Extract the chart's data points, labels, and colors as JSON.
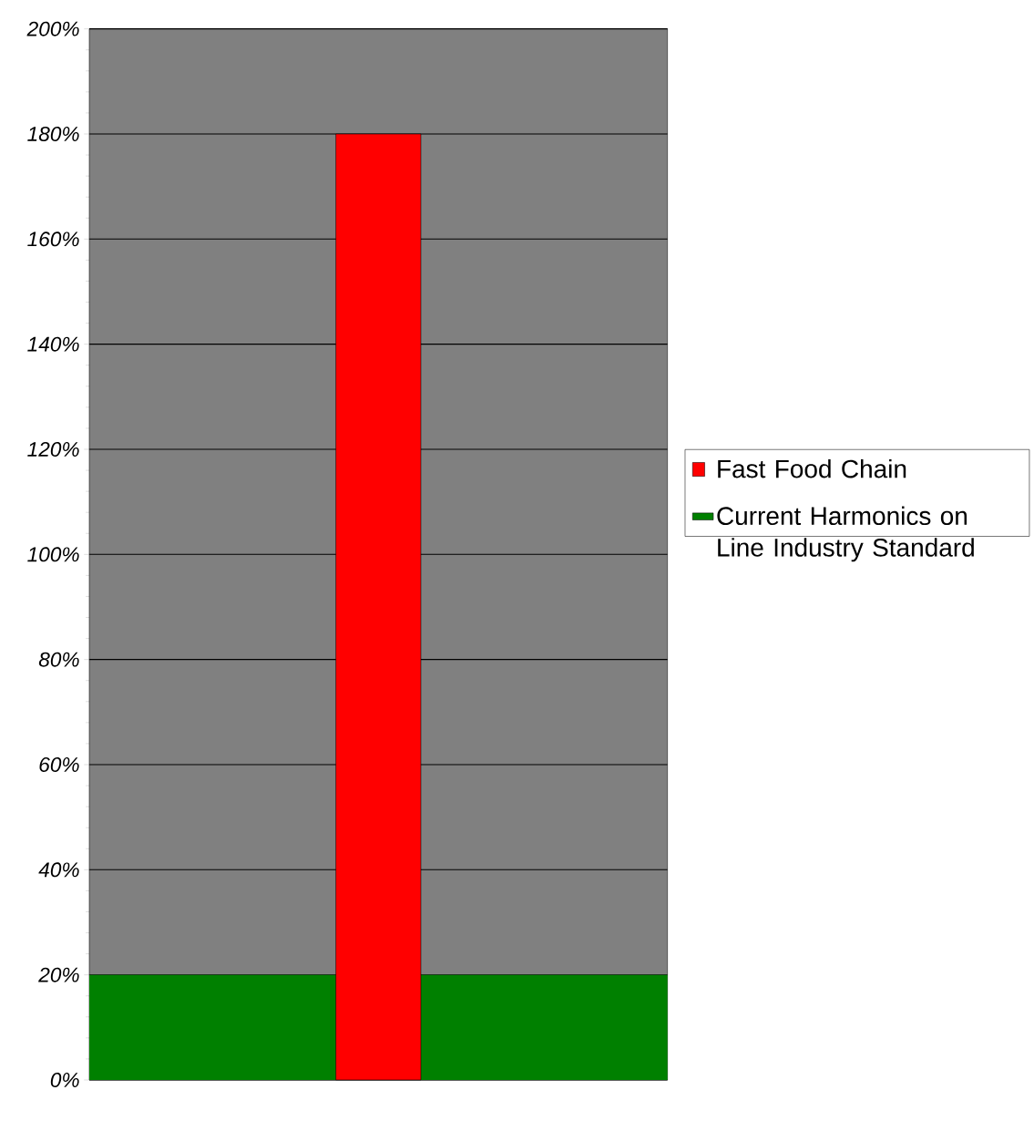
{
  "chart_data": {
    "type": "bar",
    "categories": [
      null
    ],
    "series": [
      {
        "name": "Fast Food Chain",
        "color": "#ff0000",
        "values": [
          180
        ]
      }
    ],
    "bands": [
      {
        "axis": "y",
        "from": 0,
        "to": 20,
        "label": "Current Harmonics on Line Industry Standard",
        "color": "#008000"
      }
    ],
    "ylim": [
      0,
      200
    ],
    "yticks": [
      {
        "value": 0,
        "label": "0%"
      },
      {
        "value": 20,
        "label": "20%"
      },
      {
        "value": 40,
        "label": "40%"
      },
      {
        "value": 60,
        "label": "60%"
      },
      {
        "value": 80,
        "label": "80%"
      },
      {
        "value": 100,
        "label": "100%"
      },
      {
        "value": 120,
        "label": "120%"
      },
      {
        "value": 140,
        "label": "140%"
      },
      {
        "value": 160,
        "label": "160%"
      },
      {
        "value": 180,
        "label": "180%"
      },
      {
        "value": 200,
        "label": "200%"
      }
    ],
    "grid": "y",
    "legend": "right"
  }
}
